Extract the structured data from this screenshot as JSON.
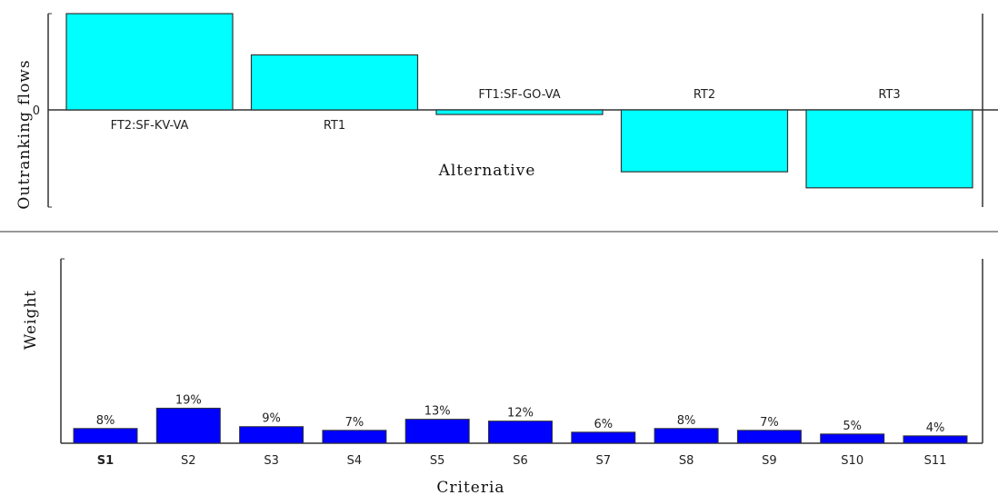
{
  "chart_data": [
    {
      "type": "bar",
      "title": "",
      "ylabel": "Outranking flows",
      "xlabel": "Alternative",
      "yticks": [
        "0"
      ],
      "categories": [
        "FT2:SF-KV-VA",
        "RT1",
        "FT1:SF-GO-VA",
        "RT2",
        "RT3"
      ],
      "values": [
        0.42,
        0.24,
        -0.02,
        -0.27,
        -0.34
      ],
      "ylim": [
        -0.42,
        0.42
      ],
      "bar_color": "#00FFFF",
      "grid": false
    },
    {
      "type": "bar",
      "title": "",
      "ylabel": "Weight",
      "xlabel": "Criteria",
      "categories": [
        "S1",
        "S2",
        "S3",
        "S4",
        "S5",
        "S6",
        "S7",
        "S8",
        "S9",
        "S10",
        "S11"
      ],
      "values": [
        8,
        19,
        9,
        7,
        13,
        12,
        6,
        8,
        7,
        5,
        4
      ],
      "data_labels": [
        "8%",
        "19%",
        "9%",
        "7%",
        "13%",
        "12%",
        "6%",
        "8%",
        "7%",
        "5%",
        "4%"
      ],
      "highlighted_category": "S1",
      "ylim": [
        0,
        100
      ],
      "bar_color": "#0000FF",
      "grid": false
    }
  ]
}
